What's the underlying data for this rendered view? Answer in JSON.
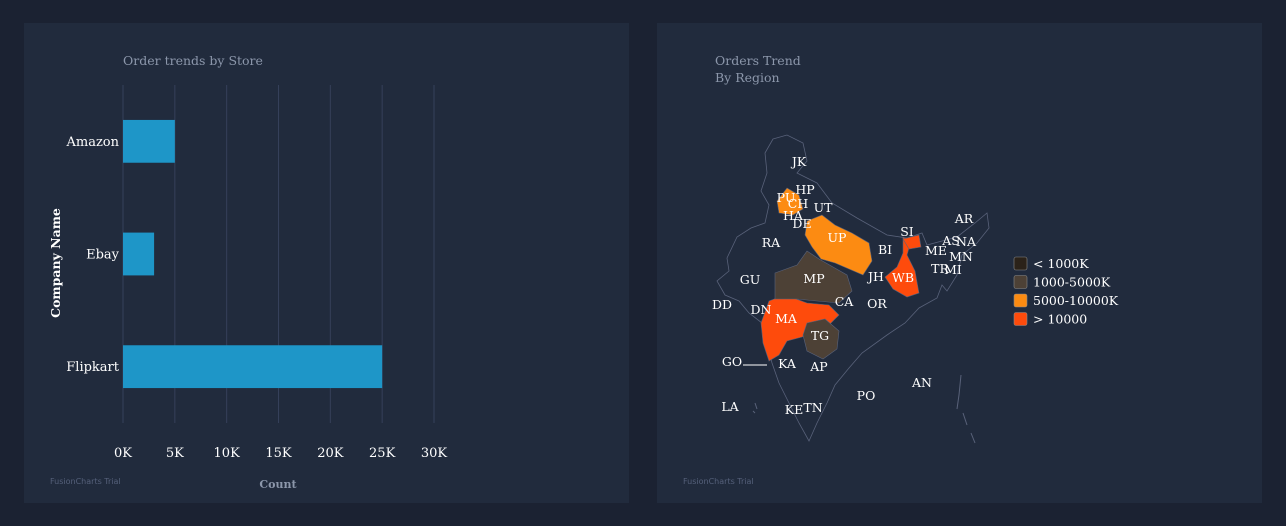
{
  "left_panel": {
    "title": "Order trends by Store",
    "watermark": "FusionCharts Trial"
  },
  "right_panel": {
    "title_line1": "Orders Trend",
    "title_line2": "By Region",
    "watermark": "FusionCharts Trial"
  },
  "chart_data": [
    {
      "type": "bar",
      "orientation": "horizontal",
      "title": "Order trends by Store",
      "xlabel": "Count",
      "ylabel": "Company Name",
      "categories": [
        "Amazon",
        "Ebay",
        "Flipkart"
      ],
      "values": [
        5000,
        3000,
        25000
      ],
      "xlim": [
        0,
        30000
      ],
      "x_ticks": [
        "0K",
        "5K",
        "10K",
        "15K",
        "20K",
        "25K",
        "30K"
      ],
      "grid": true,
      "bar_color": "#1e96c8"
    },
    {
      "type": "map",
      "title": "Orders Trend",
      "subtitle": "By Region",
      "legend": [
        {
          "label": "< 1000K",
          "color": "#2b2219"
        },
        {
          "label": "1000-5000K",
          "color": "#4d4136"
        },
        {
          "label": "5000-10000K",
          "color": "#fc8b12"
        },
        {
          "label": "> 10000",
          "color": "#fe4b0c"
        }
      ],
      "regions": [
        "JK",
        "HP",
        "PU",
        "CH",
        "UT",
        "HA",
        "DE",
        "RA",
        "UP",
        "SI",
        "AR",
        "AS",
        "NA",
        "ME",
        "MN",
        "TR",
        "MI",
        "BI",
        "JH",
        "WB",
        "GU",
        "MP",
        "DD",
        "DN",
        "CA",
        "OR",
        "MA",
        "TG",
        "GO",
        "KA",
        "AP",
        "AN",
        "LA",
        "PO",
        "KE",
        "TN"
      ]
    }
  ]
}
